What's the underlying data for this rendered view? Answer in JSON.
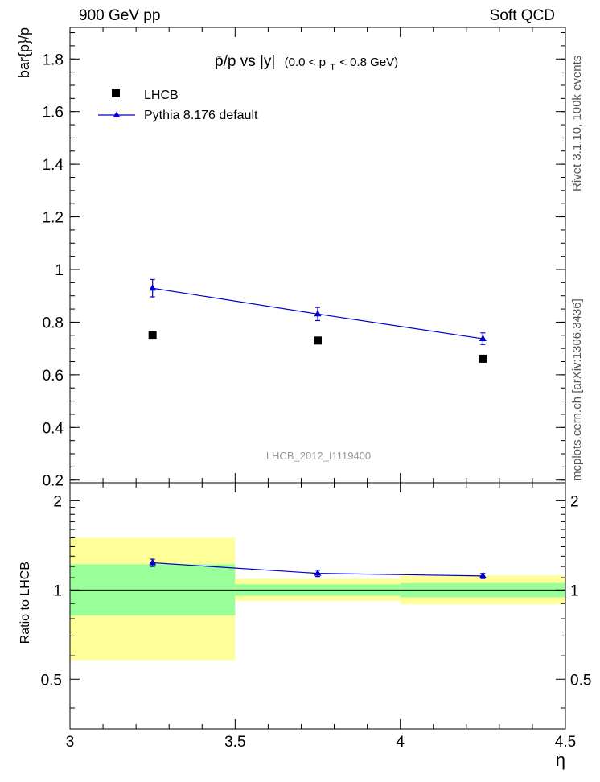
{
  "header": {
    "left": "900 GeV pp",
    "right": "Soft QCD"
  },
  "side_text": {
    "rivet": "Rivet 3.1.10,  100k events",
    "mcplots": "mcplots.cern.ch [arXiv:1306.3436]"
  },
  "colors": {
    "data": "#000000",
    "mc": "#0000cc",
    "band_inner": "#99ff99",
    "band_outer": "#ffff99",
    "watermark": "#999999"
  },
  "chart_data": [
    {
      "type": "scatter",
      "panel": "main",
      "title_main": "p̄/p vs |y|",
      "title_sub": "(0.0 < p",
      "title_sub_index": "T",
      "title_sub_end": " < 0.8 GeV)",
      "ylabel": "bar{p}/p",
      "xlabel": "",
      "watermark": "LHCB_2012_I1119400",
      "xlim": [
        3.0,
        4.5
      ],
      "ylim": [
        0.19,
        1.92
      ],
      "y_ticks": [
        0.2,
        0.4,
        0.6,
        0.8,
        1.0,
        1.2,
        1.4,
        1.6,
        1.8
      ],
      "y_tick_labels": [
        "0.2",
        "0.4",
        "0.6",
        "0.8",
        "1",
        "1.2",
        "1.4",
        "1.6",
        "1.8"
      ],
      "legend_position": "top-left",
      "series": [
        {
          "name": "LHCB",
          "marker": "square",
          "x": [
            3.25,
            3.75,
            4.25
          ],
          "y": [
            0.752,
            0.73,
            0.661
          ],
          "yerr": [
            0.004,
            0.004,
            0.006
          ]
        },
        {
          "name": "Pythia 8.176 default",
          "marker": "triangle",
          "x": [
            3.25,
            3.75,
            4.25
          ],
          "y": [
            0.929,
            0.831,
            0.737
          ],
          "yerr": [
            0.033,
            0.025,
            0.022
          ]
        }
      ]
    },
    {
      "type": "scatter",
      "panel": "ratio",
      "ylabel": "Ratio to LHCB",
      "xlabel": "η",
      "xlim": [
        3.0,
        4.5
      ],
      "ylim": [
        0.34,
        2.3
      ],
      "y_scale": "log",
      "y_ticks": [
        0.5,
        1.0,
        2.0
      ],
      "y_tick_labels": [
        "0.5",
        "1",
        "2"
      ],
      "x_ticks": [
        3.0,
        3.5,
        4.0,
        4.5
      ],
      "x_tick_labels": [
        "3",
        "3.5",
        "4",
        "4.5"
      ],
      "bands": [
        {
          "x0": 3.0,
          "x1": 3.5,
          "outer": [
            0.58,
            1.5
          ],
          "inner": [
            0.82,
            1.22
          ]
        },
        {
          "x0": 3.5,
          "x1": 4.0,
          "outer": [
            0.92,
            1.09
          ],
          "inner": [
            0.955,
            1.045
          ]
        },
        {
          "x0": 4.0,
          "x1": 4.5,
          "outer": [
            0.895,
            1.12
          ],
          "inner": [
            0.945,
            1.055
          ]
        }
      ],
      "series": [
        {
          "name": "Pythia 8.176 default / LHCB",
          "marker": "triangle",
          "x": [
            3.25,
            3.75,
            4.25
          ],
          "y": [
            1.235,
            1.138,
            1.115
          ],
          "yerr": [
            0.035,
            0.028,
            0.022
          ]
        }
      ]
    }
  ]
}
